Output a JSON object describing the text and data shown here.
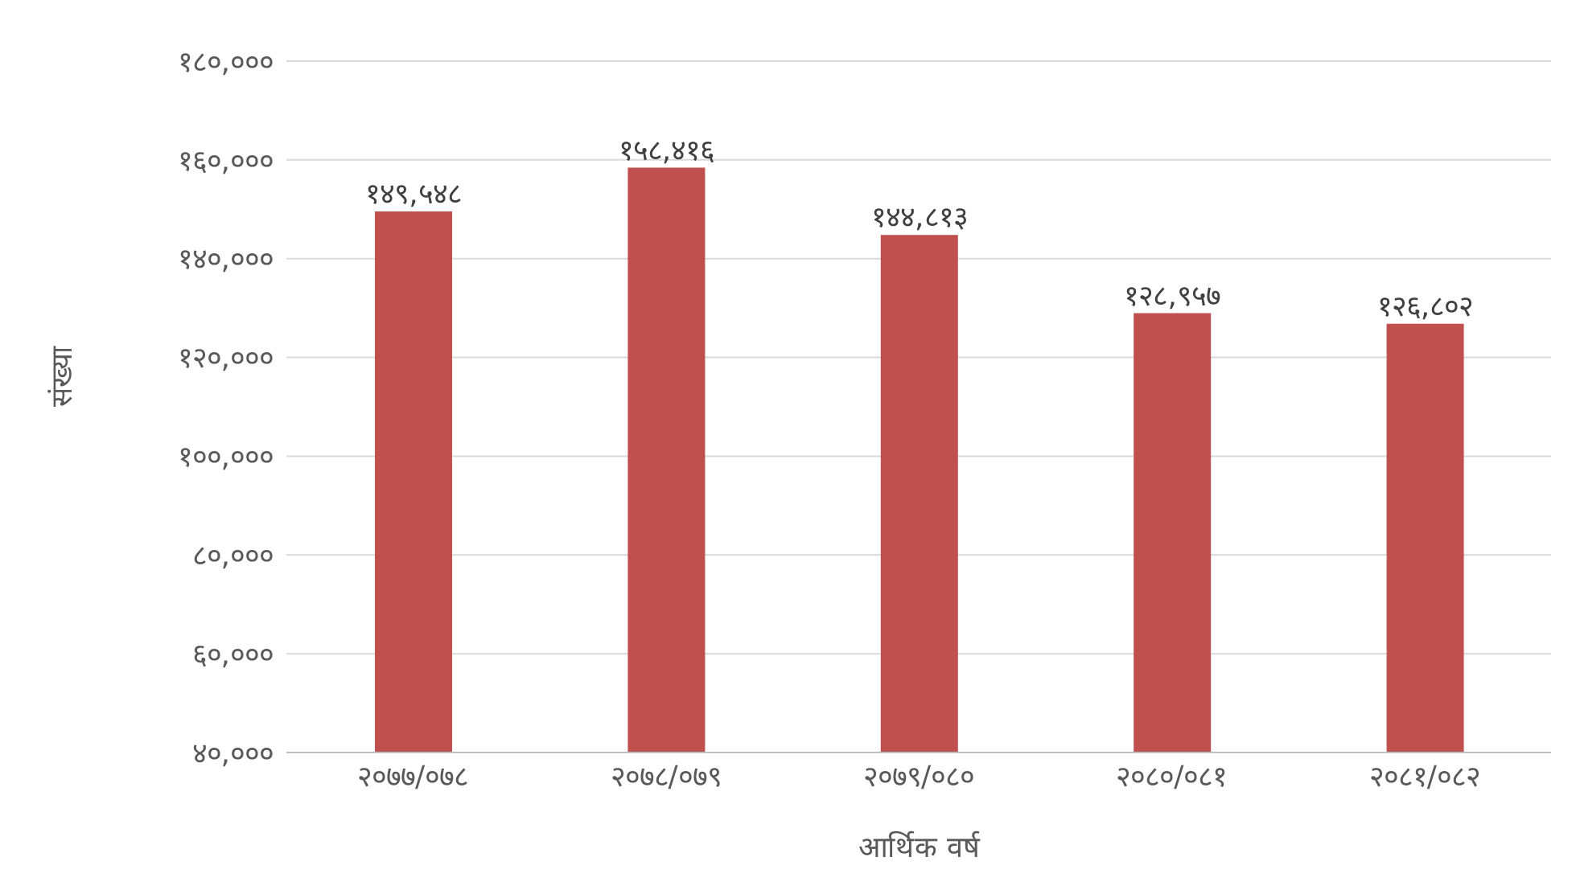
{
  "chart_data": {
    "type": "bar",
    "xlabel": "आर्थिक वर्ष",
    "ylabel": "संख्या",
    "categories": [
      "२०७७/०७८",
      "२०७८/०७९",
      "२०७९/०८०",
      "२०८०/०८१",
      "२०८१/०८२"
    ],
    "values": [
      149548,
      158416,
      144813,
      128957,
      126802
    ],
    "value_labels": [
      "१४९,५४८",
      "१५८,४१६",
      "१४४,८१३",
      "१२८,९५७",
      "१२६,८०२"
    ],
    "color": "#c0504d",
    "ylim": [
      40000,
      180000
    ],
    "yticks": [
      {
        "value": 40000,
        "label": "४०,०००"
      },
      {
        "value": 60000,
        "label": "६०,०००"
      },
      {
        "value": 80000,
        "label": "८०,०००"
      },
      {
        "value": 100000,
        "label": "१००,०००"
      },
      {
        "value": 120000,
        "label": "१२०,०००"
      },
      {
        "value": 140000,
        "label": "१४०,०००"
      },
      {
        "value": 160000,
        "label": "१६०,०००"
      },
      {
        "value": 180000,
        "label": "१८०,०००"
      }
    ],
    "grid": "y",
    "legend": false
  }
}
